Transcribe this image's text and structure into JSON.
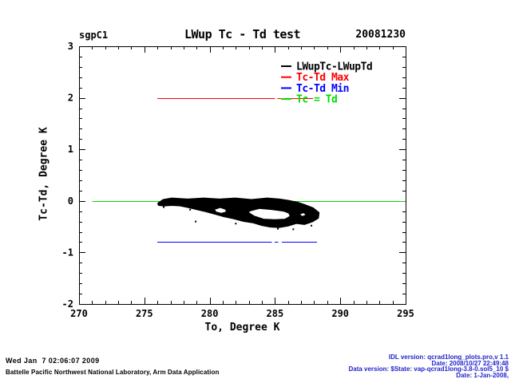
{
  "header": {
    "site": "sgpC1",
    "title": "LWup Tc - Td test",
    "date": "20081230"
  },
  "footer": {
    "left_line1": "Wed Jan  7 02:06:07 2009",
    "left_line2": "Battelle Pacific Northwest National Laboratory, Arm Data Application",
    "right_lines": [
      "IDL version: qcrad1long_plots.pro,v 1.1",
      "Date: 2008/10/27 22:49:48",
      "Data version: $State: vap-qcrad1long-3.8-0.sol5_10 $",
      "Date: 1-Jan-2008,"
    ],
    "right_text_color": "#2424cc"
  },
  "chart_data": {
    "type": "scatter",
    "title": "LWup Tc - Td test",
    "site": "sgpC1",
    "date": "20081230",
    "xlabel": "To, Degree K",
    "ylabel": "Tc-Td, Degree K",
    "xlim": [
      270,
      295
    ],
    "ylim": [
      -2,
      3
    ],
    "x_major_ticks": [
      270,
      275,
      280,
      285,
      290,
      295
    ],
    "x_minor_step": 1,
    "y_major_ticks": [
      -2,
      -1,
      0,
      1,
      2,
      3
    ],
    "y_minor_step": 0.2,
    "grid": false,
    "axis_color": "#000000",
    "legend": {
      "position": "top-right-inside",
      "entries": [
        {
          "label": "LWupTc-LWupTd",
          "color": "#000000"
        },
        {
          "label": "Tc-Td Max",
          "color": "#ff0000"
        },
        {
          "label": "Tc-Td Min",
          "color": "#0000ff"
        },
        {
          "label": "Tc = Td",
          "color": "#00dd00"
        }
      ]
    },
    "reference_lines": [
      {
        "name": "Tc = Td equality line",
        "y": 0.0,
        "color": "#00dd00",
        "segments": [
          [
            271.0,
            295.0
          ]
        ]
      },
      {
        "name": "Tc-Td Max limit",
        "y": 2.0,
        "color": "#ff0000",
        "segments": [
          [
            276.0,
            285.0
          ],
          [
            285.2,
            285.45
          ],
          [
            285.7,
            287.9
          ]
        ]
      },
      {
        "name": "Tc-Td Min limit",
        "y": -0.8,
        "color": "#0000ff",
        "segments": [
          [
            276.0,
            284.77
          ],
          [
            284.97,
            285.24
          ],
          [
            285.54,
            288.2
          ]
        ]
      }
    ],
    "scatter_cluster": {
      "series_name": "LWupTc-LWupTd",
      "color": "#000000",
      "description": "Dense banana-shaped cluster of points between To=276 and 288.3 K, Tc-Td between +0.05 and -0.55 K, hugging the zero line on top, with interior unfilled voids",
      "x_range": [
        276.0,
        288.3
      ],
      "y_range": [
        -0.55,
        0.05
      ],
      "outer_outline": [
        [
          276.05,
          -0.05
        ],
        [
          276.45,
          0.02
        ],
        [
          277.1,
          0.05
        ],
        [
          278.3,
          0.03
        ],
        [
          279.55,
          0.05
        ],
        [
          280.75,
          0.03
        ],
        [
          281.95,
          0.05
        ],
        [
          283.2,
          0.02
        ],
        [
          284.4,
          0.05
        ],
        [
          285.35,
          0.03
        ],
        [
          286.1,
          0.0
        ],
        [
          286.7,
          -0.03
        ],
        [
          287.3,
          -0.08
        ],
        [
          287.9,
          -0.14
        ],
        [
          288.35,
          -0.23
        ],
        [
          288.3,
          -0.33
        ],
        [
          287.85,
          -0.4
        ],
        [
          287.25,
          -0.45
        ],
        [
          286.65,
          -0.43
        ],
        [
          286.0,
          -0.48
        ],
        [
          285.35,
          -0.51
        ],
        [
          284.65,
          -0.5
        ],
        [
          284.0,
          -0.47
        ],
        [
          283.35,
          -0.42
        ],
        [
          282.6,
          -0.39
        ],
        [
          281.85,
          -0.34
        ],
        [
          281.1,
          -0.3
        ],
        [
          280.4,
          -0.25
        ],
        [
          279.65,
          -0.2
        ],
        [
          279.0,
          -0.16
        ],
        [
          278.35,
          -0.12
        ],
        [
          277.75,
          -0.09
        ],
        [
          277.1,
          -0.08
        ],
        [
          276.5,
          -0.09
        ],
        [
          276.1,
          -0.08
        ]
      ],
      "holes": [
        [
          [
            280.33,
            -0.16
          ],
          [
            280.82,
            -0.12
          ],
          [
            281.25,
            -0.16
          ],
          [
            281.31,
            -0.22
          ],
          [
            280.88,
            -0.25
          ],
          [
            280.45,
            -0.22
          ]
        ],
        [
          [
            283.02,
            -0.19
          ],
          [
            283.8,
            -0.14
          ],
          [
            284.73,
            -0.16
          ],
          [
            285.65,
            -0.19
          ],
          [
            286.08,
            -0.23
          ],
          [
            286.2,
            -0.3
          ],
          [
            285.77,
            -0.36
          ],
          [
            284.98,
            -0.37
          ],
          [
            284.12,
            -0.36
          ],
          [
            283.39,
            -0.3
          ],
          [
            282.96,
            -0.23
          ]
        ],
        [
          [
            286.81,
            -0.25
          ],
          [
            287.24,
            -0.22
          ],
          [
            287.42,
            -0.28
          ],
          [
            287.06,
            -0.31
          ]
        ]
      ],
      "speckles": [
        [
          278.93,
          -0.4
        ],
        [
          287.79,
          -0.48
        ],
        [
          285.22,
          -0.54
        ],
        [
          278.5,
          -0.17
        ],
        [
          276.48,
          -0.12
        ],
        [
          288.3,
          -0.28
        ],
        [
          282.0,
          -0.44
        ],
        [
          286.4,
          -0.55
        ]
      ]
    }
  }
}
